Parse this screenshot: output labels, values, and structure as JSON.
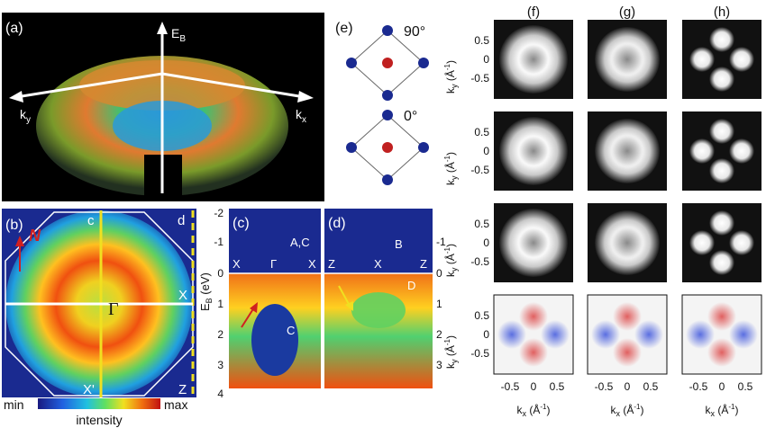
{
  "figure": {
    "panel_labels": {
      "a": "(a)",
      "b": "(b)",
      "c": "(c)",
      "d": "(d)",
      "e": "(e)",
      "f": "(f)",
      "g": "(g)",
      "h": "(h)"
    },
    "panel_a": {
      "axis_eb": "E",
      "axis_eb_sub": "B",
      "axis_ky": "k",
      "axis_ky_sub": "y",
      "axis_kx": "k",
      "axis_kx_sub": "x"
    },
    "panel_b": {
      "arrow_label": "N",
      "top_labels": [
        "c",
        "d"
      ],
      "center_label": "Γ",
      "edge_labels": [
        "X",
        "X'",
        "Z"
      ],
      "colorbar": {
        "min": "min",
        "max": "max",
        "label": "intensity"
      }
    },
    "panel_c": {
      "y_label": "E",
      "y_label_sub": "B",
      "y_label_unit": " (eV)",
      "y_ticks": [
        "-2",
        "-1",
        "0",
        "1",
        "2",
        "3",
        "4"
      ],
      "points": [
        "X",
        "Γ",
        "X"
      ],
      "annotations": [
        "A,C",
        "C"
      ]
    },
    "panel_d": {
      "right_ticks": [
        "-1",
        "0",
        "1",
        "2",
        "3"
      ],
      "points": [
        "Z",
        "X",
        "Z"
      ],
      "annotations": [
        "B",
        "D"
      ]
    },
    "panel_e": {
      "angle_top": "90°",
      "angle_bottom": "0°"
    },
    "grid_fgh": {
      "column_labels": [
        "(f)",
        "(g)",
        "(h)"
      ],
      "y_label": "k",
      "y_label_sub": "y",
      "y_label_unit": " (Å",
      "y_ticks": [
        "0.5",
        "0",
        "-0.5"
      ],
      "x_label": "k",
      "x_label_sub": "x",
      "x_label_unit": " (Å",
      "x_ticks": [
        "-0.5",
        "0",
        "0.5"
      ],
      "exp": "-1"
    }
  }
}
